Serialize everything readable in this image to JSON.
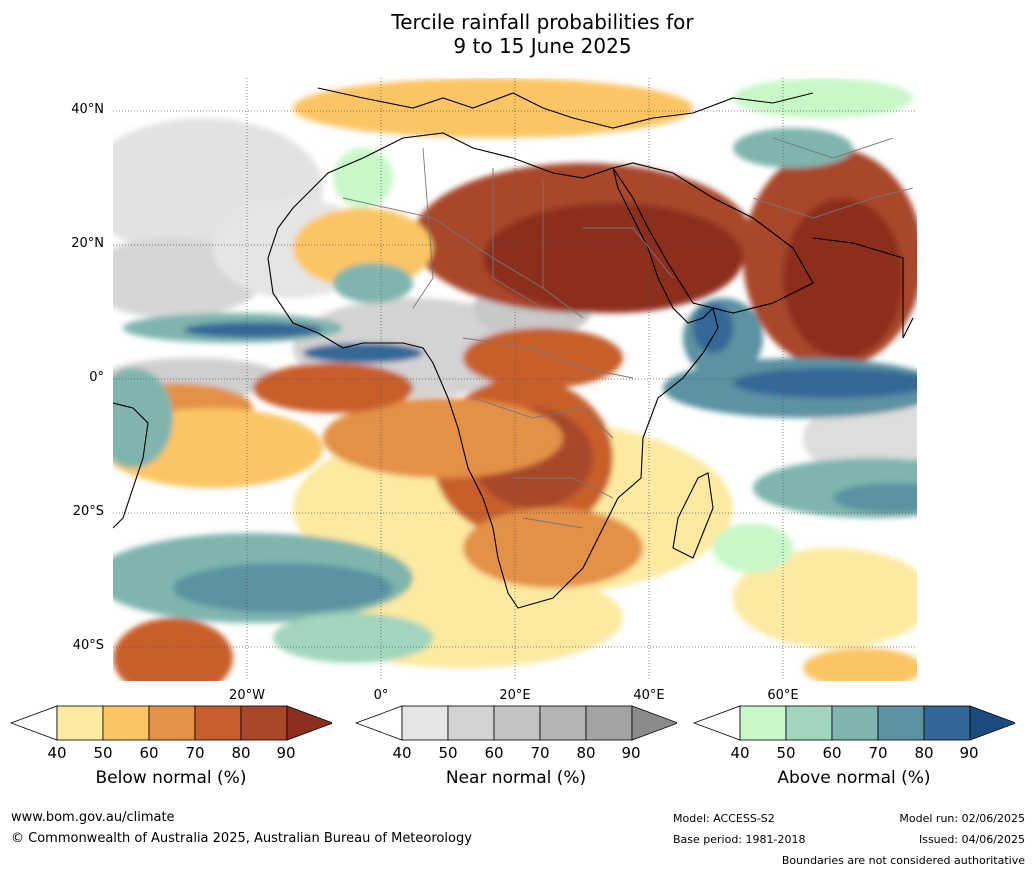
{
  "title_line1": "Tercile rainfall probabilities for",
  "title_line2": "9 to 15 June 2025",
  "lat_labels": [
    "40°N",
    "20°N",
    "0°",
    "20°S",
    "40°S"
  ],
  "lon_labels": [
    "20°W",
    "0°",
    "20°E",
    "40°E",
    "60°E"
  ],
  "colorbars": [
    {
      "title": "Below normal (%)",
      "ticks": [
        "40",
        "50",
        "60",
        "70",
        "80",
        "90"
      ],
      "colors": [
        "#ffffff",
        "#fdeaa0",
        "#fcc564",
        "#e39146",
        "#c85e2c",
        "#a8472a",
        "#8c2e1e"
      ]
    },
    {
      "title": "Near normal (%)",
      "ticks": [
        "40",
        "50",
        "60",
        "70",
        "80",
        "90"
      ],
      "colors": [
        "#ffffff",
        "#e5e5e5",
        "#d3d3d3",
        "#c3c3c3",
        "#b4b4b4",
        "#a3a3a3",
        "#8a8a8a"
      ]
    },
    {
      "title": "Above normal (%)",
      "ticks": [
        "40",
        "50",
        "60",
        "70",
        "80",
        "90"
      ],
      "colors": [
        "#ffffff",
        "#c8f8c8",
        "#a2d5bd",
        "#7fb5ae",
        "#5c92a1",
        "#346797",
        "#1a4a7e"
      ]
    }
  ],
  "footer": {
    "website": "www.bom.gov.au/climate",
    "copyright": "© Commonwealth of Australia 2025, Australian Bureau of Meteorology",
    "model": "Model: ACCESS-S2",
    "base_period": "Base period: 1981-2018",
    "model_run": "Model run: 02/06/2025",
    "issued": "Issued: 04/06/2025",
    "disclaimer": "Boundaries are not considered authoritative"
  }
}
